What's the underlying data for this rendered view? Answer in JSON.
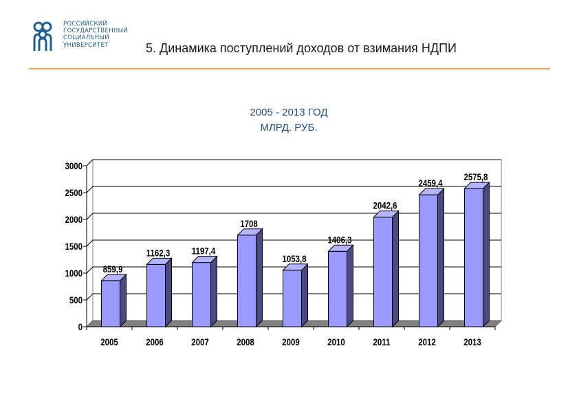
{
  "logo": {
    "lines": [
      "РОССИЙСКИЙ",
      "ГОСУДАРСТВЕННЫЙ",
      "СОЦИАЛЬНЫЙ",
      "УНИВЕРСИТЕТ"
    ],
    "color": "#1d5f8f"
  },
  "slide": {
    "heading": "5. Динамика поступлений доходов от взимания НДПИ",
    "subtitle_line1": "2005 - 2013 ГОД",
    "subtitle_line2": "МЛРД. РУБ."
  },
  "chart_data": {
    "type": "bar",
    "categories": [
      "2005",
      "2006",
      "2007",
      "2008",
      "2009",
      "2010",
      "2011",
      "2012",
      "2013"
    ],
    "values": [
      859.9,
      1162.3,
      1197.4,
      1708,
      1053.8,
      1406.3,
      2042.6,
      2459.4,
      2575.8
    ],
    "labels": [
      "859,9",
      "1162,3",
      "1197,4",
      "1708",
      "1053,8",
      "1406,3",
      "2042,6",
      "2459,4",
      "2575,8"
    ],
    "yticks": [
      "0",
      "500",
      "1000",
      "1500",
      "2000",
      "2500",
      "3000"
    ],
    "ylim": [
      0,
      3000
    ],
    "grid": true,
    "colors": {
      "bar_front": "#9999ff",
      "bar_side": "#4a4a82",
      "bar_top": "#b4b4ff",
      "floor": "#808080"
    }
  }
}
